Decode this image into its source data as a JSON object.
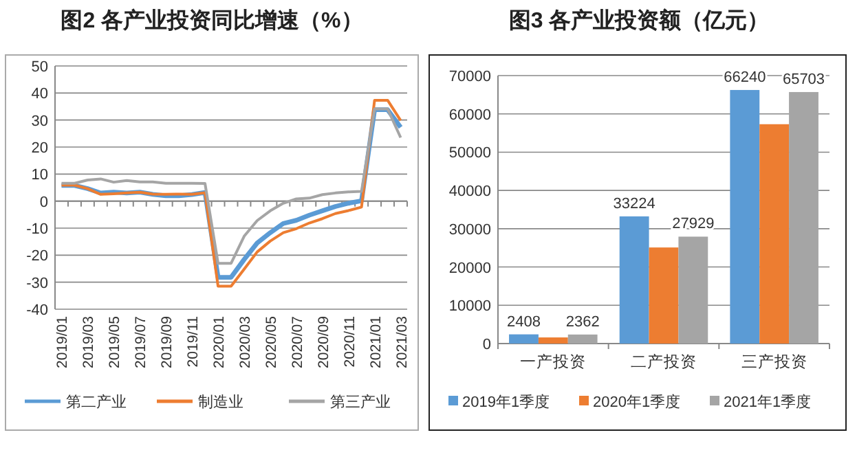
{
  "chart_data": [
    {
      "type": "line",
      "title": "图2 各产业投资同比增速（%）",
      "categories": [
        "2019/01",
        null,
        "2019/03",
        null,
        "2019/05",
        null,
        "2019/07",
        null,
        "2019/09",
        null,
        "2019/11",
        null,
        "2020/01",
        null,
        "2020/03",
        null,
        "2020/05",
        null,
        "2020/07",
        null,
        "2020/09",
        null,
        "2020/11",
        null,
        "2021/01",
        null,
        "2021/03"
      ],
      "series": [
        {
          "name": "第二产业",
          "color": "#5b9bd5",
          "values": [
            5.8,
            5.8,
            4.6,
            3.0,
            3.3,
            3.0,
            3.3,
            2.5,
            2.0,
            2.0,
            2.4,
            3.2,
            -28.2,
            -28.2,
            -21.6,
            -15.5,
            -11.7,
            -8.3,
            -7.1,
            -5.2,
            -3.6,
            -2.0,
            -0.8,
            0.1,
            33.8,
            33.8,
            27.3
          ]
        },
        {
          "name": "制造业",
          "color": "#ed7d31",
          "values": [
            5.9,
            5.9,
            4.6,
            2.5,
            2.7,
            3.0,
            3.3,
            2.6,
            2.5,
            2.6,
            2.5,
            3.1,
            -31.5,
            -31.5,
            -25.2,
            -18.8,
            -14.8,
            -11.7,
            -10.2,
            -8.1,
            -6.5,
            -4.6,
            -3.5,
            -2.2,
            37.3,
            37.3,
            29.8
          ]
        },
        {
          "name": "第三产业",
          "color": "#a5a5a5",
          "values": [
            6.6,
            6.6,
            7.8,
            8.2,
            7.0,
            7.6,
            7.1,
            7.1,
            6.6,
            6.6,
            6.6,
            6.5,
            -23.0,
            -23.0,
            -13.0,
            -7.2,
            -3.6,
            -0.8,
            0.8,
            1.1,
            2.4,
            3.0,
            3.4,
            3.6,
            34.1,
            34.1,
            23.5
          ]
        }
      ],
      "ylim": [
        -40,
        50
      ],
      "yticks": [
        -40,
        -30,
        -20,
        -10,
        0,
        10,
        20,
        30,
        40,
        50
      ],
      "grid": "y",
      "legend": "bottom",
      "marker": "none",
      "line_style": "solid"
    },
    {
      "type": "bar",
      "title": "图3 各产业投资额（亿元）",
      "categories": [
        "一产投资",
        "二产投资",
        "三产投资"
      ],
      "series": [
        {
          "name": "2019年1季度",
          "color": "#5b9bd5",
          "values": [
            2408,
            33224,
            66240
          ],
          "value_labels": [
            "2408",
            "33224",
            "66240"
          ]
        },
        {
          "name": "2020年1季度",
          "color": "#ed7d31",
          "values": [
            1600,
            25100,
            57300
          ]
        },
        {
          "name": "2021年1季度",
          "color": "#a5a5a5",
          "values": [
            2362,
            27929,
            65703
          ],
          "value_labels": [
            "2362",
            "27929",
            "65703"
          ]
        }
      ],
      "ylim": [
        0,
        70000
      ],
      "yticks": [
        0,
        10000,
        20000,
        30000,
        40000,
        50000,
        60000,
        70000
      ],
      "grid": "y",
      "legend": "bottom"
    }
  ]
}
